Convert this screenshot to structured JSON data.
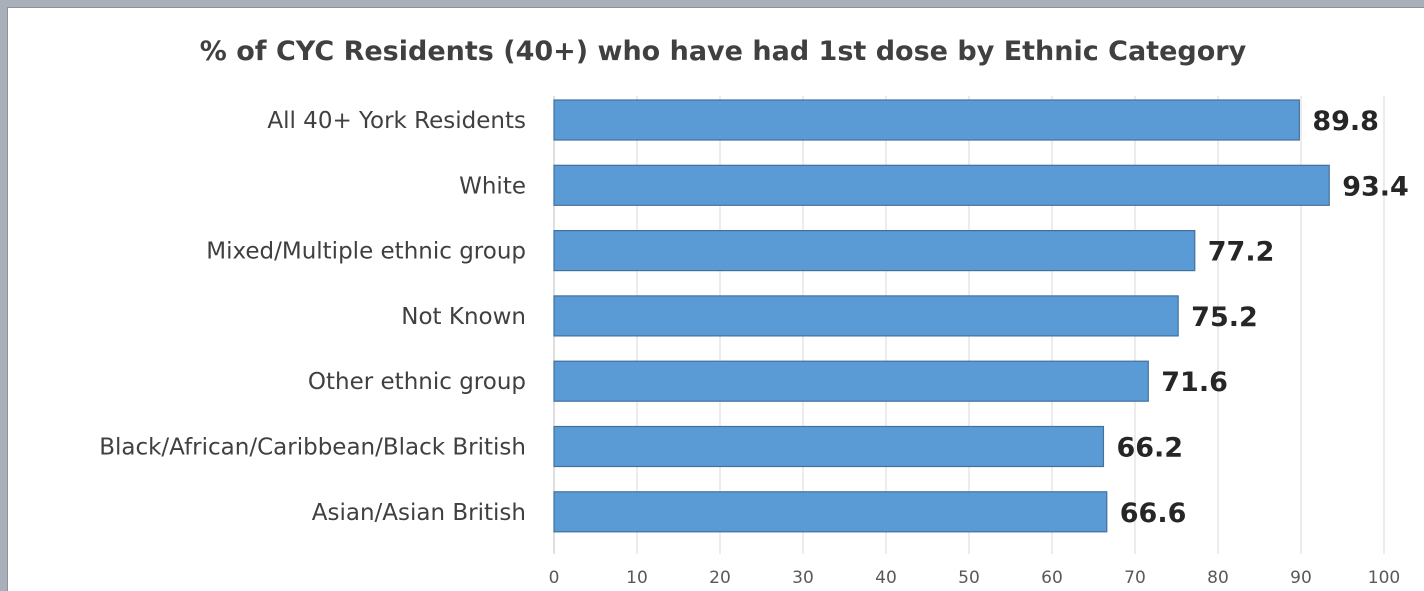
{
  "chart_data": {
    "type": "bar",
    "orientation": "horizontal",
    "title": "% of CYC Residents (40+) who have had 1st dose by Ethnic Category",
    "categories": [
      "All 40+ York Residents",
      "White",
      "Mixed/Multiple ethnic group",
      "Not Known",
      "Other ethnic group",
      "Black/African/Caribbean/Black British",
      "Asian/Asian British"
    ],
    "values": [
      89.8,
      93.4,
      77.2,
      75.2,
      71.6,
      66.2,
      66.6
    ],
    "value_labels": [
      "89.8",
      "93.4",
      "77.2",
      "75.2",
      "71.6",
      "66.2",
      "66.6"
    ],
    "xlim": [
      0,
      100
    ],
    "x_ticks": [
      "0",
      "10",
      "20",
      "30",
      "40",
      "50",
      "60",
      "70",
      "80",
      "90",
      "100"
    ],
    "grid": "vertical",
    "bar_color": "#5b9bd5",
    "bar_border_color": "#41719c",
    "legend": "none"
  }
}
